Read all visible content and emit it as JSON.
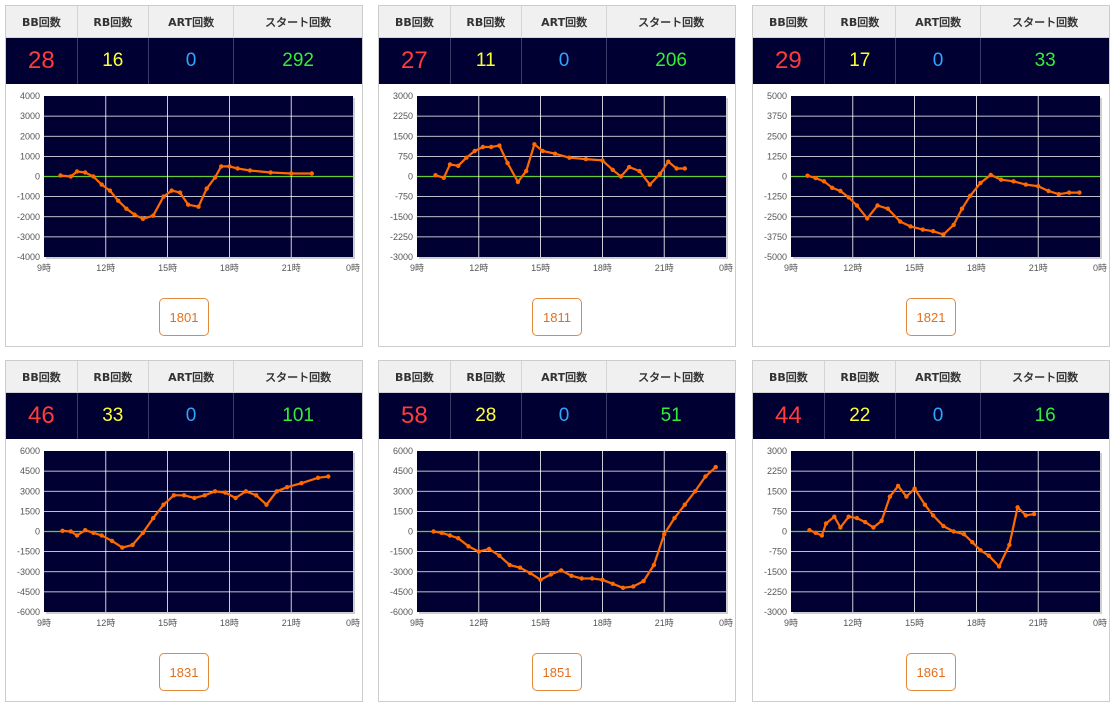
{
  "labels": {
    "bb": "BB回数",
    "rb": "RB回数",
    "art": "ART回数",
    "start": "スタート回数"
  },
  "colors": {
    "plot_bg": "#000033",
    "grid": "#ffffff",
    "zero_line": "#66cc33",
    "series": "#ff6a00",
    "bb": "#ff3b3b",
    "rb": "#ffff33",
    "art": "#2ea6ff",
    "start": "#33ee33"
  },
  "panels": [
    {
      "bb": "28",
      "rb": "16",
      "art": "0",
      "start": "292",
      "machine": "1801"
    },
    {
      "bb": "27",
      "rb": "11",
      "art": "0",
      "start": "206",
      "machine": "1811"
    },
    {
      "bb": "29",
      "rb": "17",
      "art": "0",
      "start": "33",
      "machine": "1821"
    },
    {
      "bb": "46",
      "rb": "33",
      "art": "0",
      "start": "101",
      "machine": "1831"
    },
    {
      "bb": "58",
      "rb": "28",
      "art": "0",
      "start": "51",
      "machine": "1851"
    },
    {
      "bb": "44",
      "rb": "22",
      "art": "0",
      "start": "16",
      "machine": "1861"
    }
  ],
  "chart_data": [
    {
      "type": "line",
      "x_ticks": [
        "9時",
        "12時",
        "15時",
        "18時",
        "21時",
        "0時"
      ],
      "xlim": [
        9,
        24
      ],
      "y_ticks": [
        "4000",
        "3000",
        "2000",
        "1000",
        "0",
        "-1000",
        "-2000",
        "-3000",
        "-4000"
      ],
      "ylim": [
        -4000,
        4000
      ],
      "series": [
        {
          "points": [
            [
              9.8,
              50
            ],
            [
              10.3,
              0
            ],
            [
              10.6,
              250
            ],
            [
              11.0,
              200
            ],
            [
              11.4,
              0
            ],
            [
              11.8,
              -400
            ],
            [
              12.2,
              -700
            ],
            [
              12.6,
              -1200
            ],
            [
              13.0,
              -1600
            ],
            [
              13.4,
              -1900
            ],
            [
              13.8,
              -2100
            ],
            [
              14.3,
              -1950
            ],
            [
              14.8,
              -1000
            ],
            [
              15.2,
              -700
            ],
            [
              15.6,
              -800
            ],
            [
              16.0,
              -1400
            ],
            [
              16.5,
              -1500
            ],
            [
              16.9,
              -600
            ],
            [
              17.3,
              -50
            ],
            [
              17.6,
              500
            ],
            [
              18.0,
              500
            ],
            [
              18.4,
              400
            ],
            [
              19.0,
              300
            ],
            [
              20.0,
              200
            ],
            [
              21.0,
              150
            ],
            [
              22.0,
              150
            ]
          ]
        }
      ]
    },
    {
      "type": "line",
      "x_ticks": [
        "9時",
        "12時",
        "15時",
        "18時",
        "21時",
        "0時"
      ],
      "xlim": [
        9,
        24
      ],
      "y_ticks": [
        "3000",
        "2250",
        "1500",
        "750",
        "0",
        "-750",
        "-1500",
        "-2250",
        "-3000"
      ],
      "ylim": [
        -3000,
        3000
      ],
      "series": [
        {
          "points": [
            [
              9.9,
              50
            ],
            [
              10.3,
              -50
            ],
            [
              10.6,
              450
            ],
            [
              11.0,
              400
            ],
            [
              11.4,
              700
            ],
            [
              11.8,
              950
            ],
            [
              12.2,
              1100
            ],
            [
              12.6,
              1100
            ],
            [
              13.0,
              1150
            ],
            [
              13.4,
              500
            ],
            [
              13.9,
              -200
            ],
            [
              14.3,
              200
            ],
            [
              14.7,
              1200
            ],
            [
              15.1,
              950
            ],
            [
              15.7,
              850
            ],
            [
              16.4,
              700
            ],
            [
              17.2,
              650
            ],
            [
              18.0,
              600
            ],
            [
              18.5,
              250
            ],
            [
              18.9,
              0
            ],
            [
              19.3,
              350
            ],
            [
              19.8,
              200
            ],
            [
              20.3,
              -300
            ],
            [
              20.8,
              100
            ],
            [
              21.2,
              550
            ],
            [
              21.6,
              300
            ],
            [
              22.0,
              300
            ]
          ]
        }
      ]
    },
    {
      "type": "line",
      "x_ticks": [
        "9時",
        "12時",
        "15時",
        "18時",
        "21時",
        "0時"
      ],
      "xlim": [
        9,
        24
      ],
      "y_ticks": [
        "5000",
        "3750",
        "2500",
        "1250",
        "0",
        "-1250",
        "-2500",
        "-3750",
        "-5000"
      ],
      "ylim": [
        -5000,
        5000
      ],
      "series": [
        {
          "points": [
            [
              9.8,
              50
            ],
            [
              10.2,
              -100
            ],
            [
              10.6,
              -300
            ],
            [
              11.0,
              -700
            ],
            [
              11.4,
              -900
            ],
            [
              11.8,
              -1300
            ],
            [
              12.2,
              -1800
            ],
            [
              12.7,
              -2600
            ],
            [
              13.2,
              -1800
            ],
            [
              13.7,
              -2000
            ],
            [
              14.3,
              -2800
            ],
            [
              14.8,
              -3100
            ],
            [
              15.4,
              -3300
            ],
            [
              15.9,
              -3400
            ],
            [
              16.4,
              -3600
            ],
            [
              16.9,
              -3000
            ],
            [
              17.3,
              -2000
            ],
            [
              17.7,
              -1200
            ],
            [
              18.2,
              -400
            ],
            [
              18.7,
              100
            ],
            [
              19.2,
              -200
            ],
            [
              19.8,
              -300
            ],
            [
              20.4,
              -500
            ],
            [
              21.0,
              -600
            ],
            [
              21.5,
              -900
            ],
            [
              22.0,
              -1100
            ],
            [
              22.5,
              -1000
            ],
            [
              23.0,
              -1000
            ]
          ]
        }
      ]
    },
    {
      "type": "line",
      "x_ticks": [
        "9時",
        "12時",
        "15時",
        "18時",
        "21時",
        "0時"
      ],
      "xlim": [
        9,
        24
      ],
      "y_ticks": [
        "6000",
        "4500",
        "3000",
        "1500",
        "0",
        "-1500",
        "-3000",
        "-4500",
        "-6000"
      ],
      "ylim": [
        -6000,
        6000
      ],
      "series": [
        {
          "points": [
            [
              9.9,
              50
            ],
            [
              10.3,
              0
            ],
            [
              10.6,
              -300
            ],
            [
              11.0,
              100
            ],
            [
              11.4,
              -100
            ],
            [
              11.8,
              -300
            ],
            [
              12.3,
              -700
            ],
            [
              12.8,
              -1200
            ],
            [
              13.3,
              -1000
            ],
            [
              13.8,
              -100
            ],
            [
              14.3,
              1000
            ],
            [
              14.8,
              2000
            ],
            [
              15.3,
              2700
            ],
            [
              15.8,
              2700
            ],
            [
              16.3,
              2500
            ],
            [
              16.8,
              2700
            ],
            [
              17.3,
              3000
            ],
            [
              17.8,
              2900
            ],
            [
              18.3,
              2500
            ],
            [
              18.8,
              3000
            ],
            [
              19.3,
              2700
            ],
            [
              19.8,
              2000
            ],
            [
              20.3,
              3000
            ],
            [
              20.8,
              3300
            ],
            [
              21.5,
              3600
            ],
            [
              22.3,
              4000
            ],
            [
              22.8,
              4100
            ]
          ]
        }
      ]
    },
    {
      "type": "line",
      "x_ticks": [
        "9時",
        "12時",
        "15時",
        "18時",
        "21時",
        "0時"
      ],
      "xlim": [
        9,
        24
      ],
      "y_ticks": [
        "6000",
        "4500",
        "3000",
        "1500",
        "0",
        "-1500",
        "-3000",
        "-4500",
        "-6000"
      ],
      "ylim": [
        -6000,
        6000
      ],
      "series": [
        {
          "points": [
            [
              9.8,
              0
            ],
            [
              10.2,
              -100
            ],
            [
              10.6,
              -300
            ],
            [
              11.0,
              -500
            ],
            [
              11.5,
              -1100
            ],
            [
              12.0,
              -1500
            ],
            [
              12.5,
              -1300
            ],
            [
              13.0,
              -1800
            ],
            [
              13.5,
              -2500
            ],
            [
              14.0,
              -2700
            ],
            [
              14.5,
              -3100
            ],
            [
              15.0,
              -3600
            ],
            [
              15.5,
              -3200
            ],
            [
              16.0,
              -2900
            ],
            [
              16.5,
              -3300
            ],
            [
              17.0,
              -3500
            ],
            [
              17.5,
              -3500
            ],
            [
              18.0,
              -3600
            ],
            [
              18.5,
              -3900
            ],
            [
              19.0,
              -4200
            ],
            [
              19.5,
              -4100
            ],
            [
              20.0,
              -3700
            ],
            [
              20.5,
              -2500
            ],
            [
              21.0,
              -200
            ],
            [
              21.5,
              1000
            ],
            [
              22.0,
              2000
            ],
            [
              22.5,
              3000
            ],
            [
              23.0,
              4100
            ],
            [
              23.5,
              4800
            ]
          ]
        }
      ]
    },
    {
      "type": "line",
      "x_ticks": [
        "9時",
        "12時",
        "15時",
        "18時",
        "21時",
        "0時"
      ],
      "xlim": [
        9,
        24
      ],
      "y_ticks": [
        "3000",
        "2250",
        "1500",
        "750",
        "0",
        "-750",
        "-1500",
        "-2250",
        "-3000"
      ],
      "ylim": [
        -3000,
        3000
      ],
      "series": [
        {
          "points": [
            [
              9.9,
              50
            ],
            [
              10.2,
              -50
            ],
            [
              10.5,
              -150
            ],
            [
              10.7,
              300
            ],
            [
              11.1,
              550
            ],
            [
              11.4,
              150
            ],
            [
              11.8,
              550
            ],
            [
              12.2,
              500
            ],
            [
              12.6,
              350
            ],
            [
              13.0,
              150
            ],
            [
              13.4,
              400
            ],
            [
              13.8,
              1300
            ],
            [
              14.2,
              1700
            ],
            [
              14.6,
              1300
            ],
            [
              15.0,
              1600
            ],
            [
              15.5,
              1000
            ],
            [
              15.9,
              600
            ],
            [
              16.4,
              200
            ],
            [
              16.9,
              0
            ],
            [
              17.4,
              -100
            ],
            [
              17.8,
              -400
            ],
            [
              18.2,
              -700
            ],
            [
              18.6,
              -900
            ],
            [
              19.1,
              -1300
            ],
            [
              19.6,
              -500
            ],
            [
              20.0,
              900
            ],
            [
              20.4,
              600
            ],
            [
              20.8,
              650
            ]
          ]
        }
      ]
    }
  ]
}
